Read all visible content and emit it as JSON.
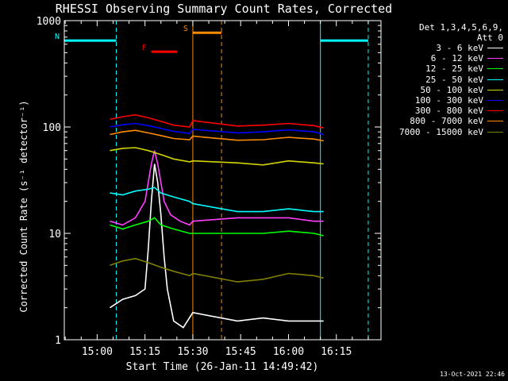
{
  "chart_data": {
    "type": "line",
    "title": "RHESSI Observing Summary Count Rates, Corrected",
    "xlabel": "Start Time (26-Jan-11 14:49:42)",
    "ylabel": "Corrected Count Rate (s⁻¹ detector⁻¹)",
    "y_scale": "log",
    "ylim": [
      1,
      1000
    ],
    "xlim": [
      "14:49:42",
      "16:29:00"
    ],
    "x_tick_labels": [
      "15:00",
      "15:15",
      "15:30",
      "15:45",
      "16:00",
      "16:15"
    ],
    "y_tick_labels": [
      "1",
      "10",
      "100",
      "1000"
    ],
    "legend": {
      "position": "right",
      "header": [
        "Det 1,3,4,5,6,9,",
        "Att 0"
      ]
    },
    "series": [
      {
        "name": "3 - 6 keV",
        "color": "#ffffff",
        "points": [
          [
            "15:04",
            2.0
          ],
          [
            "15:08",
            2.4
          ],
          [
            "15:12",
            2.6
          ],
          [
            "15:15",
            3.0
          ],
          [
            "15:16",
            7
          ],
          [
            "15:17",
            20
          ],
          [
            "15:18",
            45
          ],
          [
            "15:19",
            30
          ],
          [
            "15:20",
            15
          ],
          [
            "15:21",
            6
          ],
          [
            "15:22",
            3
          ],
          [
            "15:24",
            1.5
          ],
          [
            "15:27",
            1.3
          ],
          [
            "15:30",
            1.8
          ],
          [
            "15:44",
            1.5
          ],
          [
            "15:52",
            1.6
          ],
          [
            "16:00",
            1.5
          ],
          [
            "16:08",
            1.5
          ],
          [
            "16:11",
            1.5
          ]
        ]
      },
      {
        "name": "6 - 12 keV",
        "color": "#ff40ff",
        "points": [
          [
            "15:04",
            13
          ],
          [
            "15:08",
            12
          ],
          [
            "15:12",
            14
          ],
          [
            "15:15",
            20
          ],
          [
            "15:16",
            30
          ],
          [
            "15:17",
            45
          ],
          [
            "15:18",
            60
          ],
          [
            "15:19",
            45
          ],
          [
            "15:20",
            30
          ],
          [
            "15:21",
            20
          ],
          [
            "15:23",
            15
          ],
          [
            "15:26",
            13
          ],
          [
            "15:29",
            12
          ],
          [
            "15:30",
            13
          ],
          [
            "15:44",
            14
          ],
          [
            "15:52",
            14
          ],
          [
            "16:00",
            14
          ],
          [
            "16:08",
            13
          ],
          [
            "16:11",
            13
          ]
        ]
      },
      {
        "name": "12 - 25 keV",
        "color": "#00ff00",
        "points": [
          [
            "15:04",
            12
          ],
          [
            "15:08",
            11
          ],
          [
            "15:12",
            12
          ],
          [
            "15:16",
            13
          ],
          [
            "15:18",
            14
          ],
          [
            "15:20",
            12
          ],
          [
            "15:24",
            11
          ],
          [
            "15:29",
            10
          ],
          [
            "15:30",
            10
          ],
          [
            "15:44",
            10
          ],
          [
            "15:52",
            10
          ],
          [
            "16:00",
            10.5
          ],
          [
            "16:08",
            10
          ],
          [
            "16:11",
            9.5
          ]
        ]
      },
      {
        "name": "25 - 50 keV",
        "color": "#00ffff",
        "points": [
          [
            "15:04",
            24
          ],
          [
            "15:08",
            23
          ],
          [
            "15:12",
            25
          ],
          [
            "15:16",
            26
          ],
          [
            "15:18",
            27
          ],
          [
            "15:20",
            24
          ],
          [
            "15:24",
            22
          ],
          [
            "15:29",
            20
          ],
          [
            "15:30",
            19
          ],
          [
            "15:44",
            16
          ],
          [
            "15:52",
            16
          ],
          [
            "16:00",
            17
          ],
          [
            "16:08",
            16
          ],
          [
            "16:11",
            16
          ]
        ]
      },
      {
        "name": "50 - 100 keV",
        "color": "#d4d400",
        "points": [
          [
            "15:04",
            60
          ],
          [
            "15:08",
            63
          ],
          [
            "15:12",
            64
          ],
          [
            "15:16",
            60
          ],
          [
            "15:20",
            55
          ],
          [
            "15:24",
            50
          ],
          [
            "15:29",
            47
          ],
          [
            "15:30",
            48
          ],
          [
            "15:44",
            46
          ],
          [
            "15:52",
            44
          ],
          [
            "16:00",
            48
          ],
          [
            "16:08",
            46
          ],
          [
            "16:11",
            45
          ]
        ]
      },
      {
        "name": "100 - 300 keV",
        "color": "#0000ff",
        "points": [
          [
            "15:04",
            100
          ],
          [
            "15:08",
            105
          ],
          [
            "15:12",
            108
          ],
          [
            "15:16",
            103
          ],
          [
            "15:20",
            97
          ],
          [
            "15:24",
            91
          ],
          [
            "15:29",
            87
          ],
          [
            "15:30",
            95
          ],
          [
            "15:44",
            88
          ],
          [
            "15:52",
            90
          ],
          [
            "16:00",
            94
          ],
          [
            "16:08",
            90
          ],
          [
            "16:11",
            85
          ]
        ]
      },
      {
        "name": "300 - 800 keV",
        "color": "#ff0000",
        "points": [
          [
            "15:04",
            118
          ],
          [
            "15:08",
            125
          ],
          [
            "15:12",
            130
          ],
          [
            "15:16",
            122
          ],
          [
            "15:20",
            113
          ],
          [
            "15:24",
            104
          ],
          [
            "15:29",
            100
          ],
          [
            "15:30",
            115
          ],
          [
            "15:44",
            102
          ],
          [
            "15:52",
            104
          ],
          [
            "16:00",
            108
          ],
          [
            "16:08",
            103
          ],
          [
            "16:11",
            98
          ]
        ]
      },
      {
        "name": "800 - 7000 keV",
        "color": "#ff8c00",
        "points": [
          [
            "15:04",
            85
          ],
          [
            "15:08",
            90
          ],
          [
            "15:12",
            93
          ],
          [
            "15:16",
            88
          ],
          [
            "15:20",
            83
          ],
          [
            "15:24",
            78
          ],
          [
            "15:29",
            76
          ],
          [
            "15:30",
            82
          ],
          [
            "15:44",
            75
          ],
          [
            "15:52",
            76
          ],
          [
            "16:00",
            80
          ],
          [
            "16:08",
            77
          ],
          [
            "16:11",
            74
          ]
        ]
      },
      {
        "name": "7000 - 15000 keV",
        "color": "#808000",
        "points": [
          [
            "15:04",
            5.0
          ],
          [
            "15:08",
            5.5
          ],
          [
            "15:12",
            5.8
          ],
          [
            "15:16",
            5.3
          ],
          [
            "15:20",
            4.8
          ],
          [
            "15:24",
            4.4
          ],
          [
            "15:29",
            4.0
          ],
          [
            "15:30",
            4.2
          ],
          [
            "15:44",
            3.5
          ],
          [
            "15:52",
            3.7
          ],
          [
            "16:00",
            4.2
          ],
          [
            "16:08",
            4.0
          ],
          [
            "16:11",
            3.8
          ]
        ]
      }
    ],
    "annotations": [
      {
        "type": "bar",
        "label": "N",
        "color": "#00ffff",
        "y": 650,
        "x": [
          [
            "14:49:42",
            "15:06"
          ],
          [
            "16:10",
            "16:25"
          ]
        ]
      },
      {
        "type": "bar",
        "label": "F",
        "color": "#ff0000",
        "y": 510,
        "x": [
          [
            "15:17",
            "15:25"
          ]
        ]
      },
      {
        "type": "bar",
        "label": "S",
        "color": "#ff8c00",
        "y": 770,
        "x": [
          [
            "15:30",
            "15:39"
          ]
        ]
      }
    ],
    "vertical_lines": [
      {
        "color": "#00ffff",
        "style": "solid",
        "x": "14:49:42"
      },
      {
        "color": "#00ffff",
        "style": "dashed",
        "x": "15:06"
      },
      {
        "color": "#ff8c00",
        "style": "solid",
        "x": "15:30"
      },
      {
        "color": "#ff8c00",
        "style": "dashed",
        "x": "15:39"
      },
      {
        "color": "#00ffff",
        "style": "solid",
        "x": "16:10"
      },
      {
        "color": "#00ffff",
        "style": "dashed",
        "x": "16:25"
      }
    ]
  },
  "footer": {
    "timestamp": "13-Oct-2021 22:46"
  }
}
